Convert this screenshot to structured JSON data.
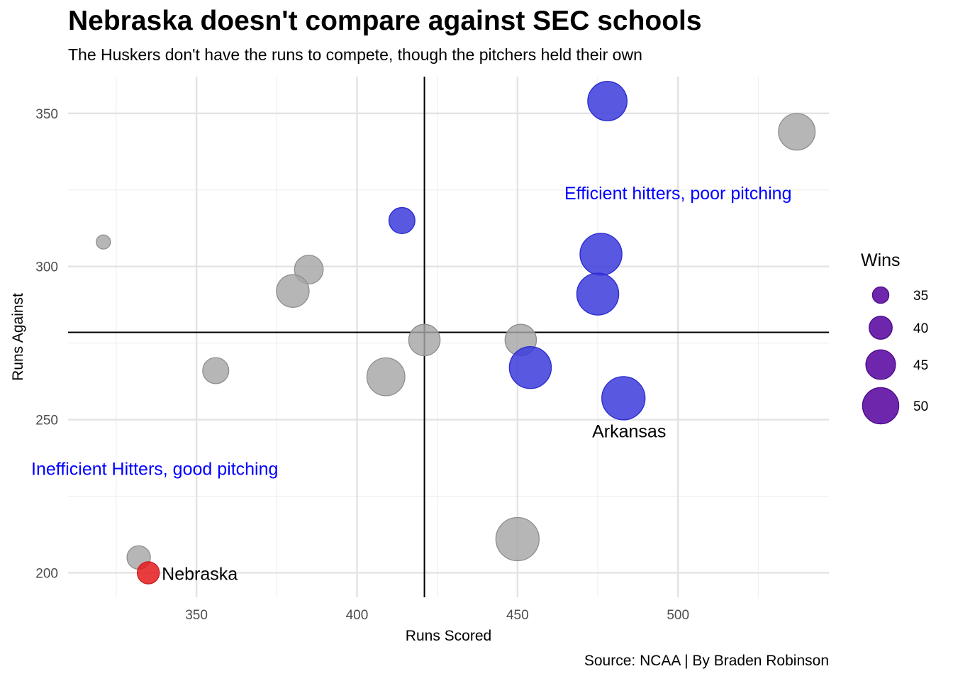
{
  "chart_data": {
    "type": "scatter",
    "title": "Nebraska doesn't compare against SEC schools",
    "subtitle": "The Huskers don't have the runs to compete, though the pitchers held their own",
    "caption": "Source: NCAA | By Braden Robinson",
    "xlabel": "Runs Scored",
    "ylabel": "Runs Against",
    "xlim": [
      310,
      547
    ],
    "ylim": [
      192,
      362
    ],
    "xticks": [
      350,
      400,
      450,
      500
    ],
    "yticks": [
      200,
      250,
      300,
      350
    ],
    "grid": true,
    "reference_lines": {
      "x": 421,
      "y": 278.5
    },
    "size_variable": "Wins",
    "legend": {
      "title": "Wins",
      "position": "right",
      "sizes": [
        35,
        40,
        45,
        50
      ]
    },
    "colors": {
      "other": "#A6A6A6",
      "highlight": "#3B3BDB",
      "nebraska": "#E41A1C",
      "legend": "#5E0FA3",
      "annotation": "#0000FF"
    },
    "points": [
      {
        "x": 478,
        "y": 354,
        "wins": 48,
        "group": "highlight"
      },
      {
        "x": 537,
        "y": 344,
        "wins": 46,
        "group": "other"
      },
      {
        "x": 414,
        "y": 315,
        "wins": 38,
        "group": "highlight"
      },
      {
        "x": 321,
        "y": 308,
        "wins": 29,
        "group": "other"
      },
      {
        "x": 476,
        "y": 304,
        "wins": 50,
        "group": "highlight"
      },
      {
        "x": 385,
        "y": 299,
        "wins": 40,
        "group": "other"
      },
      {
        "x": 380,
        "y": 292,
        "wins": 43,
        "group": "other"
      },
      {
        "x": 475,
        "y": 291,
        "wins": 50,
        "group": "highlight"
      },
      {
        "x": 421,
        "y": 276,
        "wins": 42,
        "group": "other"
      },
      {
        "x": 451,
        "y": 276,
        "wins": 42,
        "group": "other"
      },
      {
        "x": 454,
        "y": 267,
        "wins": 50,
        "group": "highlight"
      },
      {
        "x": 356,
        "y": 266,
        "wins": 38,
        "group": "other"
      },
      {
        "x": 409,
        "y": 264,
        "wins": 47,
        "group": "other"
      },
      {
        "x": 483,
        "y": 257,
        "wins": 51,
        "group": "highlight"
      },
      {
        "x": 450,
        "y": 211,
        "wins": 51,
        "group": "other"
      },
      {
        "x": 332,
        "y": 205,
        "wins": 36,
        "group": "other"
      },
      {
        "x": 335,
        "y": 200,
        "wins": 35,
        "group": "nebraska"
      }
    ],
    "point_labels": [
      {
        "text": "Arkansas",
        "x": 483,
        "y": 257
      },
      {
        "text": "Nebraska",
        "x": 335,
        "y": 200
      }
    ],
    "annotations": [
      {
        "text": "Efficient hitters, poor pitching",
        "x": 500,
        "y": 324
      },
      {
        "text": "Inefficient Hitters, good pitching",
        "x": 337,
        "y": 234
      }
    ]
  }
}
